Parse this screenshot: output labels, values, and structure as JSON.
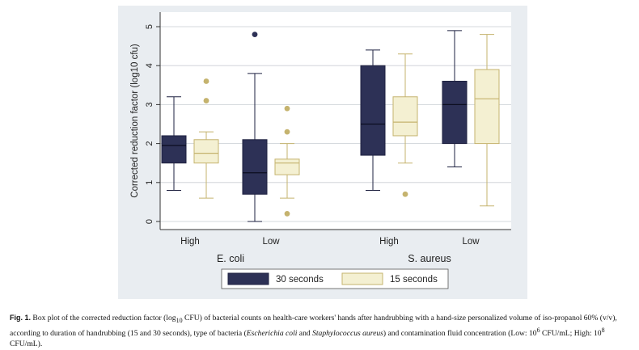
{
  "chart_data": {
    "type": "box",
    "ylabel": "Corrected reduction factor (log10 cfu)",
    "ylim": [
      0,
      5
    ],
    "yticks": [
      "0",
      "1",
      "2",
      "3",
      "4",
      "5"
    ],
    "grid": true,
    "legend_position": "bottom",
    "groups": [
      {
        "label": "E. coli",
        "subgroups": [
          "High",
          "Low"
        ]
      },
      {
        "label": "S. aureus",
        "subgroups": [
          "High",
          "Low"
        ]
      }
    ],
    "series": [
      {
        "name": "30 seconds",
        "color": "#2d3156",
        "boxes": [
          {
            "group": "E. coli",
            "sub": "High",
            "min": 0.8,
            "q1": 1.5,
            "median": 1.95,
            "q3": 2.2,
            "max": 3.2,
            "outliers": []
          },
          {
            "group": "E. coli",
            "sub": "Low",
            "min": 0,
            "q1": 0.7,
            "median": 1.25,
            "q3": 2.1,
            "max": 3.8,
            "outliers": [
              4.8
            ]
          },
          {
            "group": "S. aureus",
            "sub": "High",
            "min": 0.8,
            "q1": 1.7,
            "median": 2.5,
            "q3": 4.0,
            "max": 4.4,
            "outliers": []
          },
          {
            "group": "S. aureus",
            "sub": "Low",
            "min": 1.4,
            "q1": 2.0,
            "median": 3.0,
            "q3": 3.6,
            "max": 4.9,
            "outliers": []
          }
        ]
      },
      {
        "name": "15 seconds",
        "color": "#f4f0d2",
        "boxes": [
          {
            "group": "E. coli",
            "sub": "High",
            "min": 0.6,
            "q1": 1.5,
            "median": 1.75,
            "q3": 2.1,
            "max": 2.3,
            "outliers": [
              3.6,
              3.1
            ]
          },
          {
            "group": "E. coli",
            "sub": "Low",
            "min": 0.6,
            "q1": 1.2,
            "median": 1.5,
            "q3": 1.6,
            "max": 2.0,
            "outliers": [
              2.9,
              2.3,
              0.2
            ]
          },
          {
            "group": "S. aureus",
            "sub": "High",
            "min": 1.5,
            "q1": 2.2,
            "median": 2.55,
            "q3": 3.2,
            "max": 4.3,
            "outliers": [
              0.7
            ]
          },
          {
            "group": "S. aureus",
            "sub": "Low",
            "min": 0.4,
            "q1": 2.0,
            "median": 3.15,
            "q3": 3.9,
            "max": 4.8,
            "outliers": []
          }
        ]
      }
    ],
    "colors": {
      "dark_box": "#2d3156",
      "light_box": "#f4f0d2",
      "light_edge": "#c5b36e",
      "outlier_light": "#c5b36e",
      "panel_bg": "#e9edf1",
      "grid": "#c9ced3"
    }
  },
  "caption": {
    "label": "Fig. 1.",
    "part1": " Box plot of the corrected reduction factor (log",
    "sub1": "10",
    "part2": " CFU) of bacterial counts on health-care workers' hands after handrubbing with a hand-size personalized volume of iso-propanol 60% (v/v), according to duration of handrubbing (15 and 30 seconds), type of bacteria (",
    "italic1": "Escherichia coli",
    "part3": " and ",
    "italic2": "Staphylococcus aureus",
    "part4": ") and contamination fluid concentration (Low: 10",
    "sup1": "6",
    "part5": " CFU/mL; High: 10",
    "sup2": "8",
    "part6": " CFU/mL)."
  }
}
